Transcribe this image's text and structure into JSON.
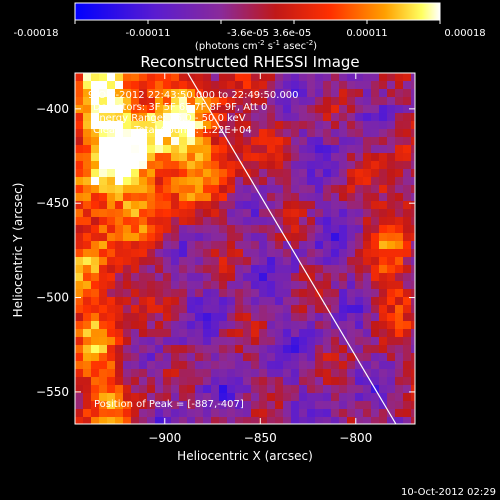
{
  "colorbar": {
    "ticks": [
      "-0.00018",
      "-0.00011",
      "-3.6e-05",
      "3.6e-05",
      "0.00011",
      "0.00018"
    ],
    "units_main": "(photons cm",
    "units_sup1": "-2",
    "units_mid": " s",
    "units_sup2": "-1",
    "units_end": " asec",
    "units_sup3": "-2",
    "units_close": ")"
  },
  "chart_data": {
    "type": "heatmap",
    "title": "Reconstructed RHESSI Image",
    "xlabel": "Heliocentric X (arcsec)",
    "ylabel": "Heliocentric Y (arcsec)",
    "xlim": [
      -947,
      -769
    ],
    "ylim": [
      -567,
      -381
    ],
    "xticks": [
      -900,
      -850,
      -800
    ],
    "xtick_labels": [
      "−900",
      "−850",
      "−800"
    ],
    "yticks": [
      -400,
      -450,
      -500,
      -550
    ],
    "ytick_labels": [
      "−400",
      "−450",
      "−500",
      "−550"
    ],
    "colorbar_range": [
      -0.00018,
      0.00018
    ],
    "colormap": "blue-purple-red-yellow-white",
    "limb_line": [
      [
        -888,
        -381
      ],
      [
        -779,
        -567
      ]
    ],
    "peak": {
      "x": -887,
      "y": -407
    },
    "annotations": [
      "9-Oct-2012 22:43:50.000 to 22:49:50.000",
      "Detectors: 3F 5F 6F 7F 8F 9F, Att 0",
      "Energy Range: 25.0 - 50.0 keV",
      "Clean    Total Counts: 1.22E+04",
      "Position of Peak = [-887,-407]"
    ]
  },
  "timestamp": "10-Oct-2012 02:29"
}
